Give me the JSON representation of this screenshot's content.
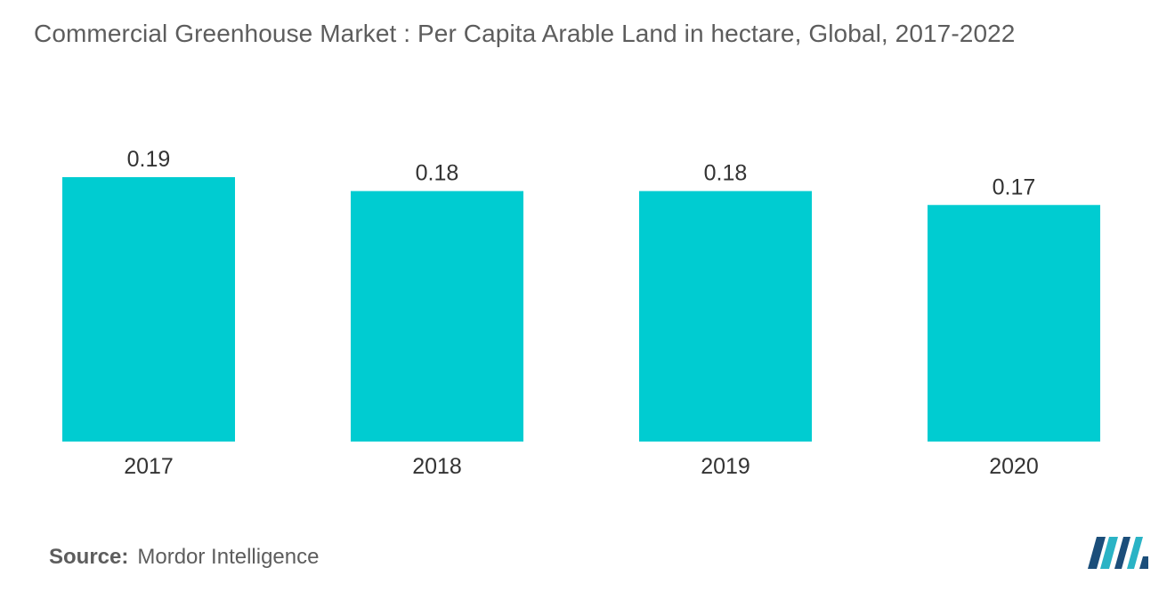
{
  "title": "Commercial Greenhouse Market : Per Capita Arable Land in hectare, Global, 2017-2022",
  "source": {
    "label": "Source:",
    "name": "Mordor Intelligence"
  },
  "logo": {
    "icon": "mordor-intelligence-logo",
    "colors": [
      "#1b4e7a",
      "#2ab3c5"
    ]
  },
  "colors": {
    "bar": "#00ccd1",
    "text": "#333333",
    "title": "#5d5d5d"
  },
  "chart_data": {
    "type": "bar",
    "title": "Commercial Greenhouse Market : Per Capita Arable Land in hectare, Global, 2017-2022",
    "xlabel": "",
    "ylabel": "",
    "categories": [
      "2017",
      "2018",
      "2019",
      "2020"
    ],
    "values": [
      0.19,
      0.18,
      0.18,
      0.17
    ],
    "value_labels": [
      "0.19",
      "0.18",
      "0.18",
      "0.17"
    ],
    "ylim": [
      0,
      0.19
    ],
    "grid": false,
    "legend": "none"
  }
}
